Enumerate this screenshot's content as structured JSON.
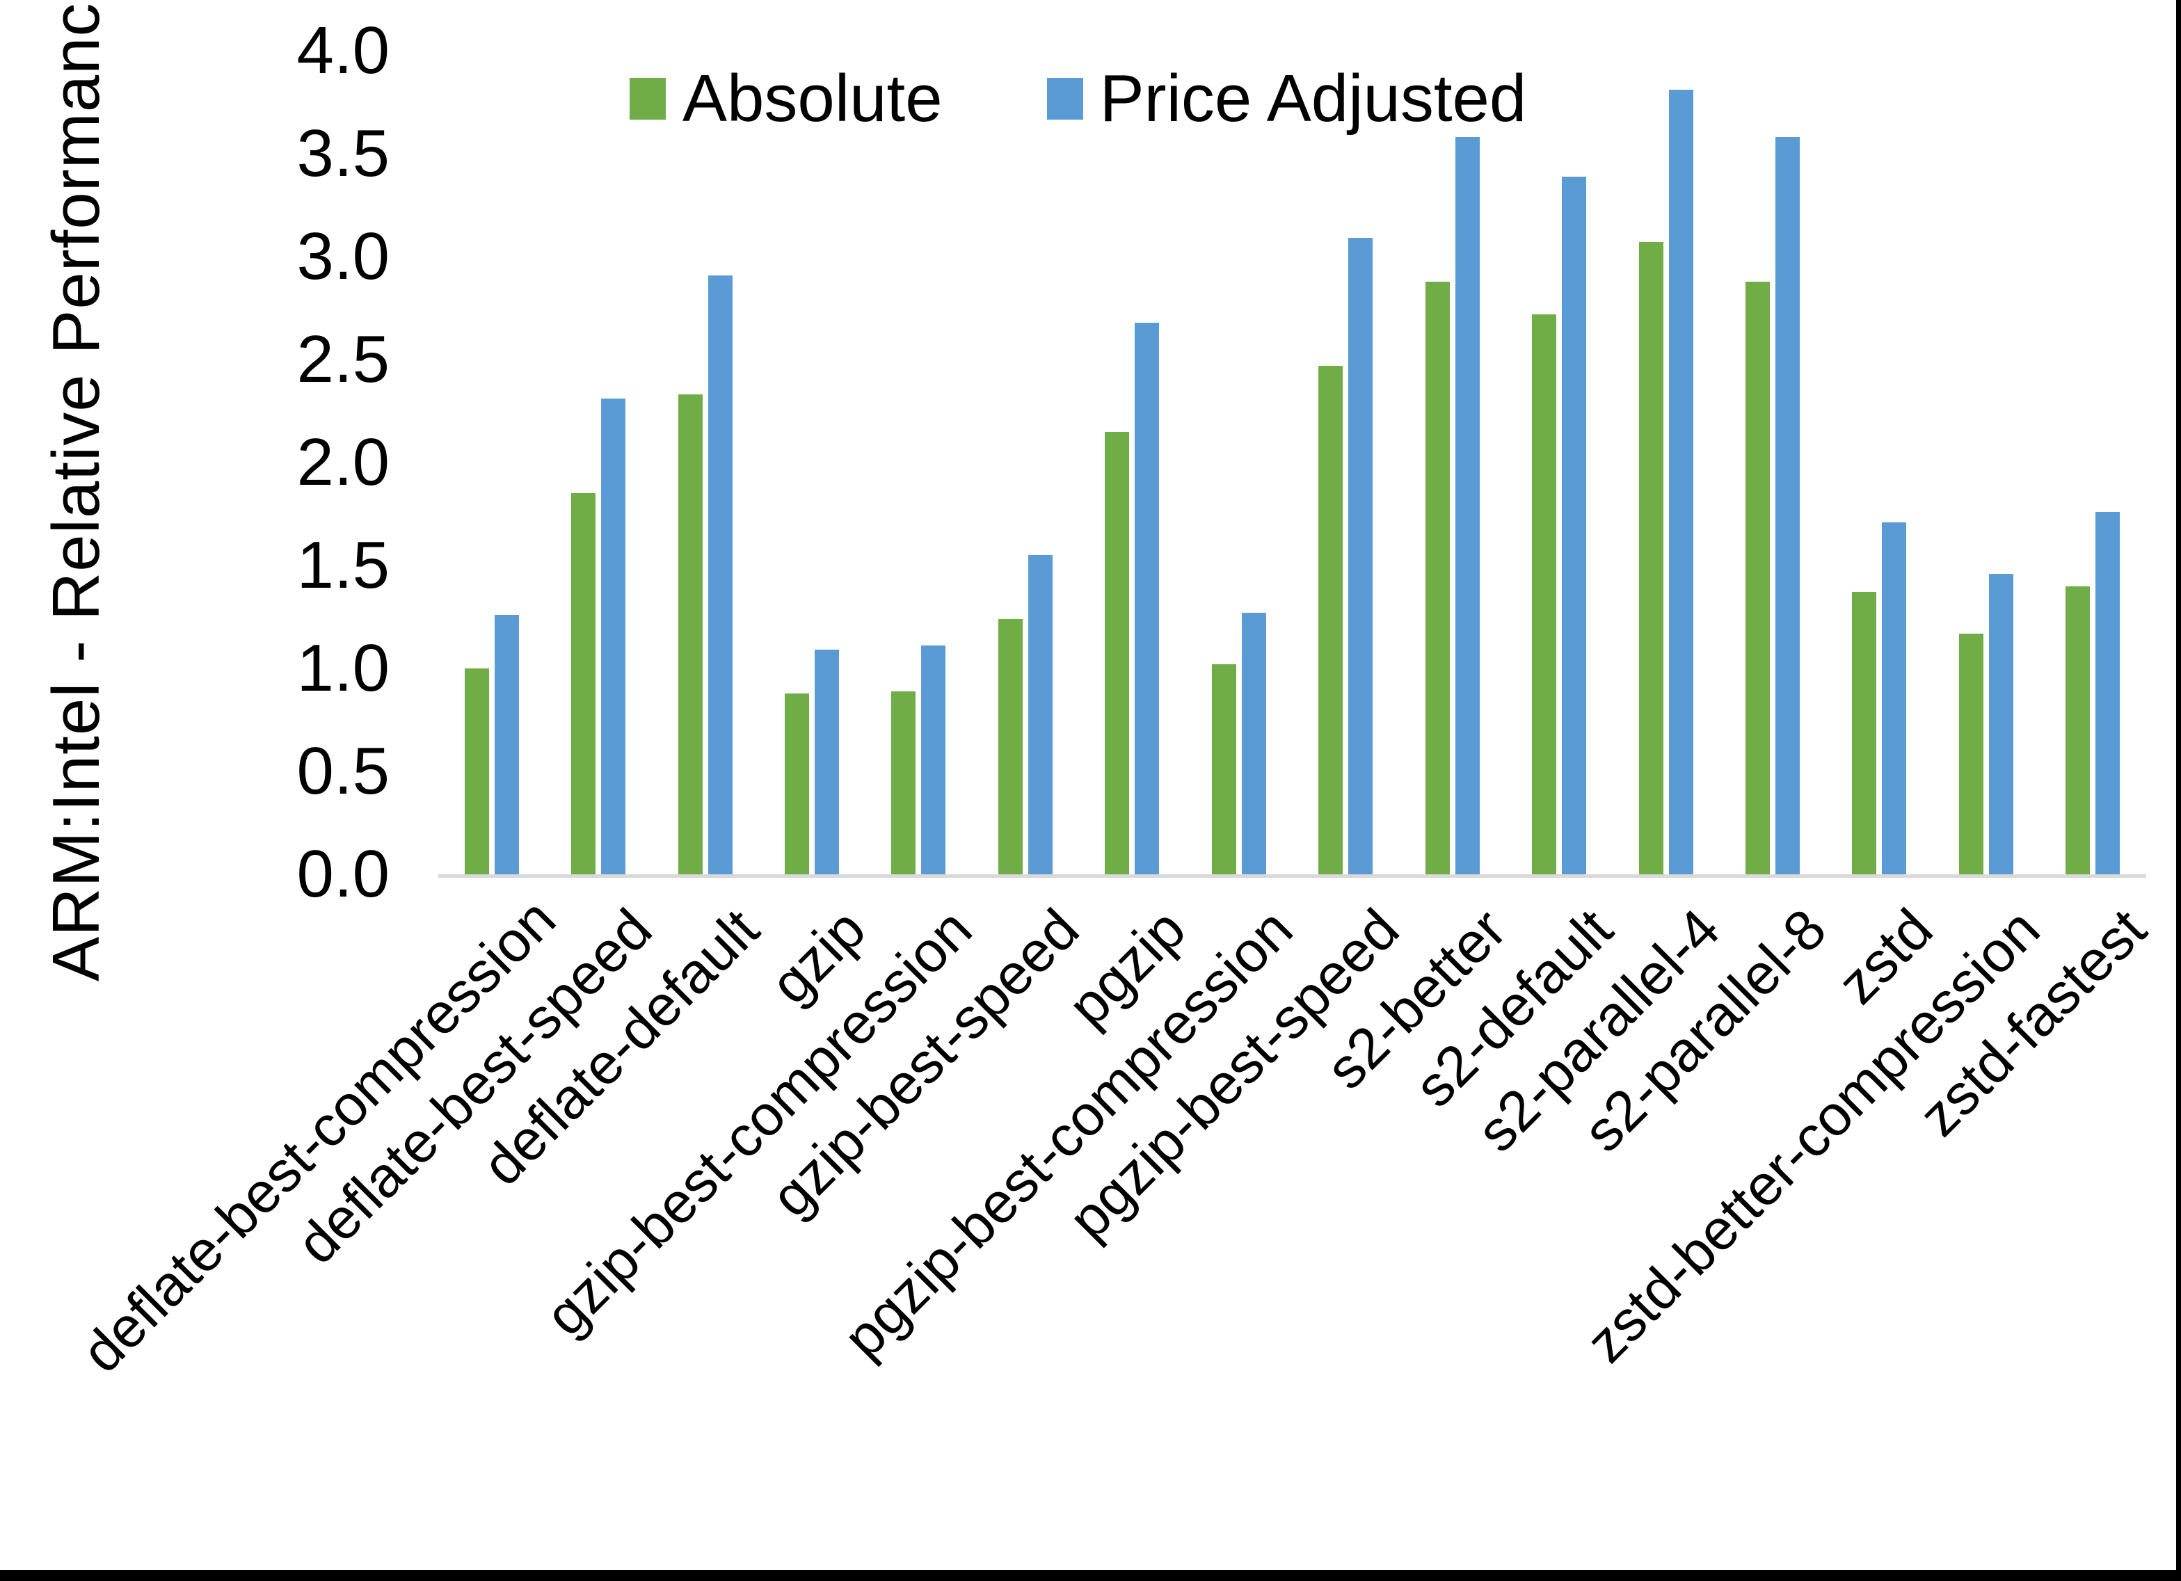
{
  "y_axis": {
    "title": "ARM:Intel - Relative Performance",
    "tick_labels": [
      "4.0",
      "3.5",
      "3.0",
      "2.5",
      "2.0",
      "1.5",
      "1.0",
      "0.5",
      "0.0"
    ]
  },
  "legend": {
    "items": [
      {
        "label": "Absolute",
        "color": "#70AD47"
      },
      {
        "label": "Price Adjusted",
        "color": "#5B9BD5"
      }
    ]
  },
  "colors": {
    "absolute_green": "#70AD47",
    "price_adjusted_blue": "#5B9BD5",
    "axis_line_gray": "#D9D9D9",
    "text_black": "#000000",
    "background": "#FFFFFF",
    "border_black": "#000000"
  },
  "chart_data": {
    "type": "bar",
    "title": "",
    "xlabel": "",
    "ylabel": "ARM:Intel - Relative Performance",
    "ylim": [
      0,
      4
    ],
    "ytick_step": 0.5,
    "grid": false,
    "legend_position": "top-center",
    "categories": [
      "deflate-best-compression",
      "deflate-best-speed",
      "deflate-default",
      "gzip",
      "gzip-best-compression",
      "gzip-best-speed",
      "pgzip",
      "pgzip-best-compression",
      "pgzip-best-speed",
      "s2-better",
      "s2-default",
      "s2-parallel-4",
      "s2-parallel-8",
      "zstd",
      "zstd-better-compression",
      "zstd-fastest"
    ],
    "series": [
      {
        "name": "Absolute",
        "color": "#70AD47",
        "values": [
          1.0,
          1.85,
          2.33,
          0.88,
          0.89,
          1.24,
          2.15,
          1.02,
          2.47,
          2.88,
          2.72,
          3.07,
          2.88,
          1.37,
          1.17,
          1.4
        ]
      },
      {
        "name": "Price Adjusted",
        "color": "#5B9BD5",
        "values": [
          1.26,
          2.31,
          2.91,
          1.09,
          1.11,
          1.55,
          2.68,
          1.27,
          3.09,
          3.58,
          3.39,
          3.81,
          3.58,
          1.71,
          1.46,
          1.76
        ]
      }
    ]
  }
}
